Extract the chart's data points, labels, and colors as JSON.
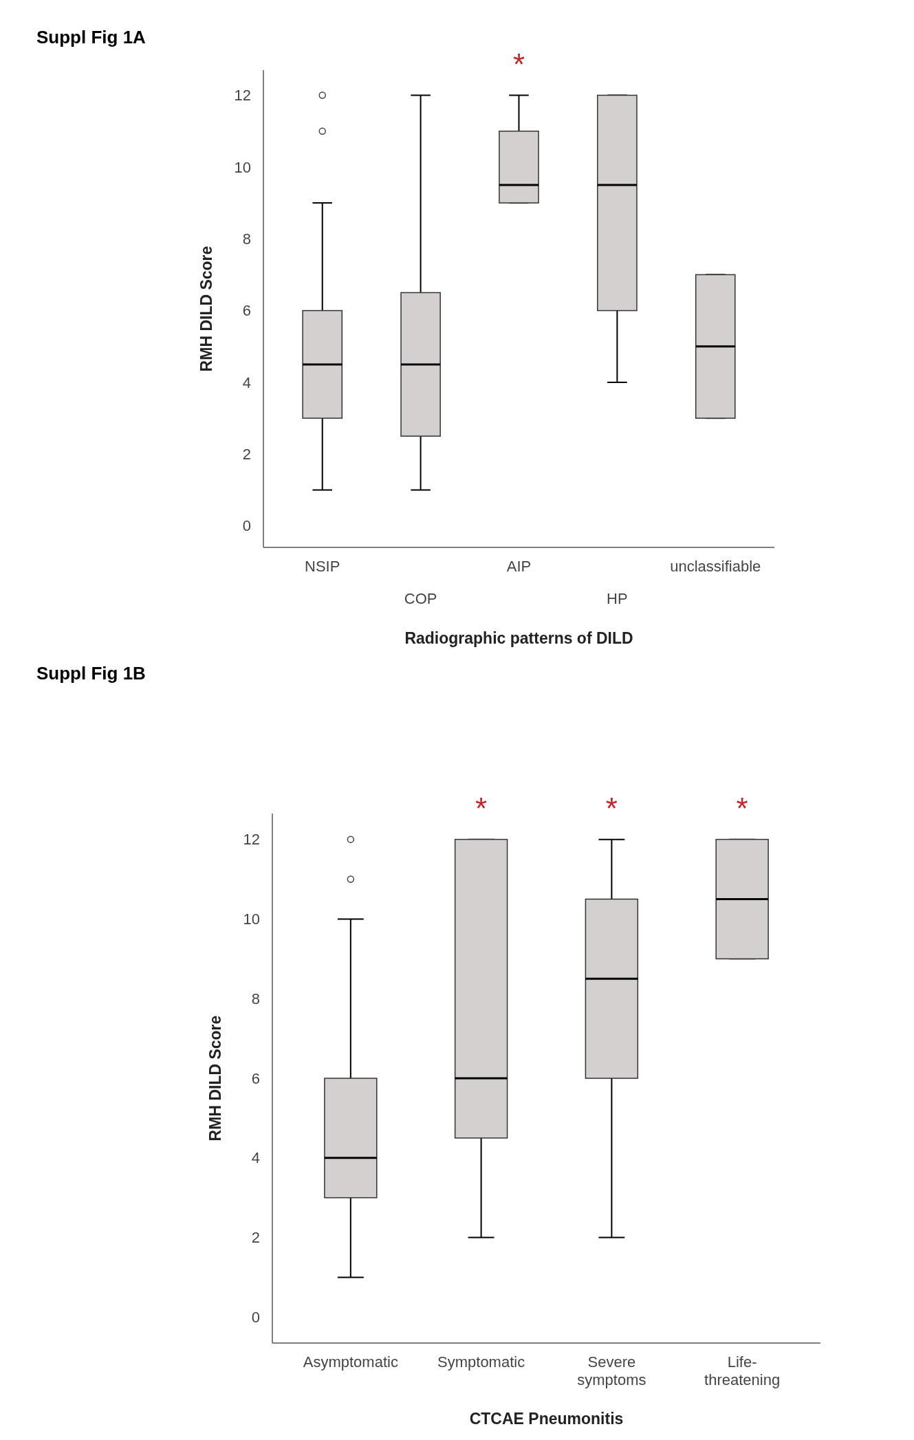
{
  "chart_data": [
    {
      "type": "box",
      "title": "Suppl Fig 1A",
      "xlabel": "Radiographic patterns of DILD",
      "ylabel": "RMH DILD Score",
      "categories": [
        "NSIP",
        "COP",
        "AIP",
        "HP",
        "unclassifiable"
      ],
      "color": "#d4d0cf",
      "ylim": [
        -0.6,
        12.7
      ],
      "yticks": [
        0,
        2,
        4,
        6,
        8,
        10,
        12
      ],
      "grid": false,
      "boxes": [
        {
          "low": 1,
          "q1": 3,
          "median": 4.5,
          "q3": 6,
          "high": 9,
          "outliers": [
            11,
            12
          ]
        },
        {
          "low": 1,
          "q1": 2.5,
          "median": 4.5,
          "q3": 6.5,
          "high": 12
        },
        {
          "low": 9,
          "q1": 9,
          "median": 9.5,
          "q3": 11,
          "high": 12
        },
        {
          "low": 4,
          "q1": 6,
          "median": 9.5,
          "q3": 12,
          "high": 12
        },
        {
          "low": 3,
          "q1": 3,
          "median": 5,
          "q3": 7,
          "high": 7
        }
      ],
      "annotations": [
        {
          "text": "*",
          "x": "AIP",
          "y": 12
        }
      ]
    },
    {
      "type": "box",
      "title": "Suppl Fig 1B",
      "xlabel": "CTCAE Pneumonitis",
      "ylabel": "RMH DILD Score",
      "categories": [
        "Asymptomatic",
        "Symptomatic",
        "Severe symptoms",
        "Life-threatening"
      ],
      "color": "#d4d0cf",
      "ylim": [
        -0.65,
        12.65
      ],
      "yticks": [
        0,
        2,
        4,
        6,
        8,
        10,
        12
      ],
      "grid": false,
      "boxes": [
        {
          "low": 1,
          "q1": 3,
          "median": 4,
          "q3": 6,
          "high": 10,
          "outliers": [
            11,
            12
          ]
        },
        {
          "low": 2,
          "q1": 4.5,
          "median": 6,
          "q3": 12,
          "high": 12
        },
        {
          "low": 2,
          "q1": 6,
          "median": 8.5,
          "q3": 10.5,
          "high": 12
        },
        {
          "low": 9,
          "q1": 9,
          "median": 10.5,
          "q3": 12,
          "high": 12
        }
      ],
      "annotations": [
        {
          "text": "*",
          "x": "Symptomatic",
          "y": 12
        },
        {
          "text": "*",
          "x": "Severe symptoms",
          "y": 12
        },
        {
          "text": "*",
          "x": "Life-threatening",
          "y": 12
        }
      ]
    }
  ]
}
